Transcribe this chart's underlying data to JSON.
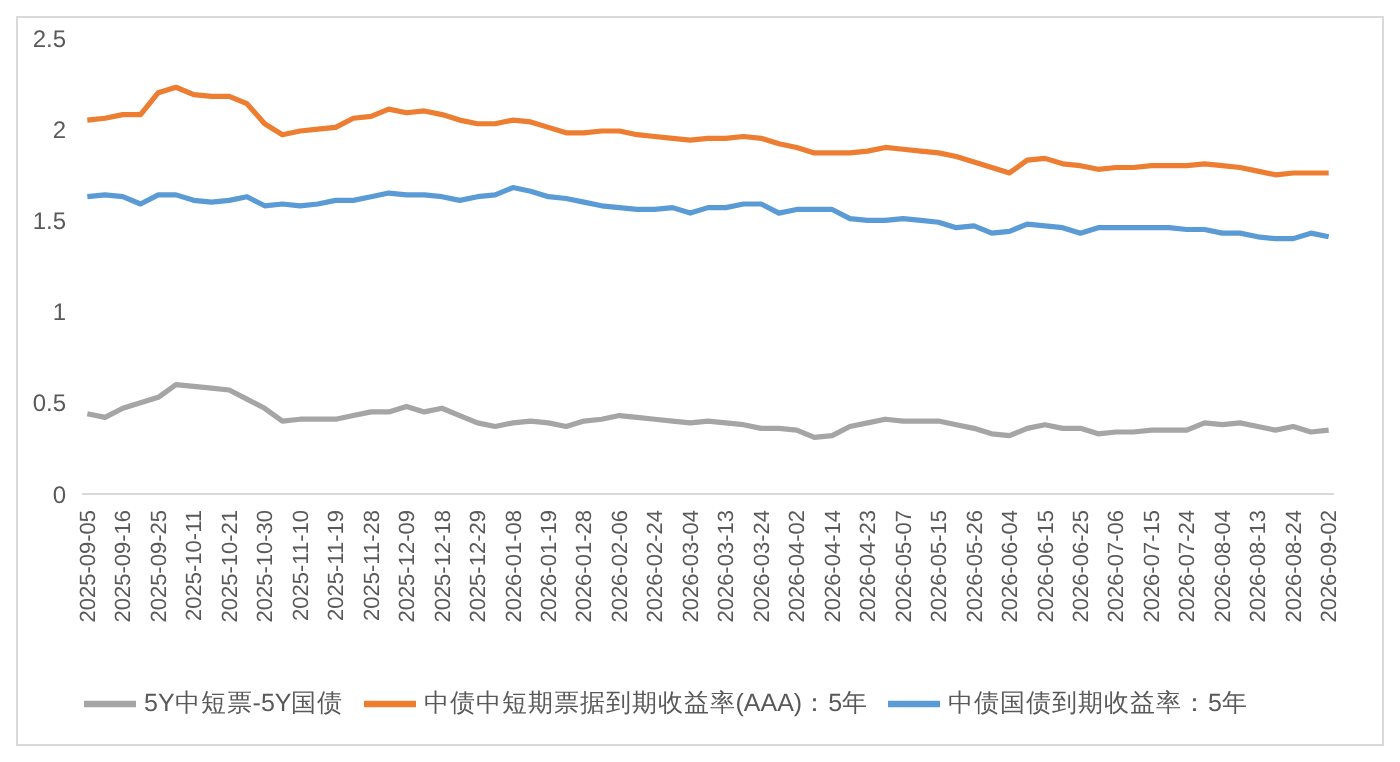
{
  "chart_data": {
    "type": "line",
    "categories": [
      "2025-09-05",
      null,
      "2025-09-16",
      null,
      "2025-09-25",
      null,
      "2025-10-11",
      null,
      "2025-10-21",
      null,
      "2025-10-30",
      null,
      "2025-11-10",
      null,
      "2025-11-19",
      null,
      "2025-11-28",
      null,
      "2025-12-09",
      null,
      "2025-12-18",
      null,
      "2025-12-29",
      null,
      "2026-01-08",
      null,
      "2026-01-19",
      null,
      "2026-01-28",
      null,
      "2026-02-06",
      null,
      "2026-02-24",
      null,
      "2026-03-04",
      null,
      "2026-03-13",
      null,
      "2026-03-24",
      null,
      "2026-04-02",
      null,
      "2026-04-14",
      null,
      "2026-04-23",
      null,
      "2026-05-07",
      null,
      "2026-05-15",
      null,
      "2026-05-26",
      null,
      "2026-06-04",
      null,
      "2026-06-15",
      null,
      "2026-06-25",
      null,
      "2026-07-06",
      null,
      "2026-07-15",
      null,
      "2026-07-24",
      null,
      "2026-08-04",
      null,
      "2026-08-13",
      null,
      "2026-08-24",
      null,
      "2026-09-02"
    ],
    "series": [
      {
        "name": "中债国债到期收益率：5年",
        "color": "#5b9bd5",
        "values": [
          1.63,
          1.64,
          1.63,
          1.59,
          1.64,
          1.64,
          1.61,
          1.6,
          1.61,
          1.63,
          1.58,
          1.59,
          1.58,
          1.59,
          1.61,
          1.61,
          1.63,
          1.65,
          1.64,
          1.64,
          1.63,
          1.61,
          1.63,
          1.64,
          1.68,
          1.66,
          1.63,
          1.62,
          1.6,
          1.58,
          1.57,
          1.56,
          1.56,
          1.57,
          1.54,
          1.57,
          1.57,
          1.59,
          1.59,
          1.54,
          1.56,
          1.56,
          1.56,
          1.51,
          1.5,
          1.5,
          1.51,
          1.5,
          1.49,
          1.46,
          1.47,
          1.43,
          1.44,
          1.48,
          1.47,
          1.46,
          1.43,
          1.46,
          1.46,
          1.46,
          1.46,
          1.46,
          1.45,
          1.45,
          1.43,
          1.43,
          1.41,
          1.4,
          1.4,
          1.43,
          1.41
        ]
      },
      {
        "name": "中债中短期票据到期收益率(AAA)：5年",
        "color": "#ed7d31",
        "values": [
          2.05,
          2.06,
          2.08,
          2.08,
          2.2,
          2.23,
          2.19,
          2.18,
          2.18,
          2.14,
          2.03,
          1.97,
          1.99,
          2.0,
          2.01,
          2.06,
          2.07,
          2.11,
          2.09,
          2.1,
          2.08,
          2.05,
          2.03,
          2.03,
          2.05,
          2.04,
          2.01,
          1.98,
          1.98,
          1.99,
          1.99,
          1.97,
          1.96,
          1.95,
          1.94,
          1.95,
          1.95,
          1.96,
          1.95,
          1.92,
          1.9,
          1.87,
          1.87,
          1.87,
          1.88,
          1.9,
          1.89,
          1.88,
          1.87,
          1.85,
          1.82,
          1.79,
          1.76,
          1.83,
          1.84,
          1.81,
          1.8,
          1.78,
          1.79,
          1.79,
          1.8,
          1.8,
          1.8,
          1.81,
          1.8,
          1.79,
          1.77,
          1.75,
          1.76,
          1.76,
          1.76
        ]
      },
      {
        "name": "5Y中短票-5Y国债",
        "color": "#a5a5a5",
        "values": [
          0.44,
          0.42,
          0.47,
          0.5,
          0.53,
          0.6,
          0.59,
          0.58,
          0.57,
          0.52,
          0.47,
          0.4,
          0.41,
          0.41,
          0.41,
          0.43,
          0.45,
          0.45,
          0.48,
          0.45,
          0.47,
          0.43,
          0.39,
          0.37,
          0.39,
          0.4,
          0.39,
          0.37,
          0.4,
          0.41,
          0.43,
          0.42,
          0.41,
          0.4,
          0.39,
          0.4,
          0.39,
          0.38,
          0.36,
          0.36,
          0.35,
          0.31,
          0.32,
          0.37,
          0.39,
          0.41,
          0.4,
          0.4,
          0.4,
          0.38,
          0.36,
          0.33,
          0.32,
          0.36,
          0.38,
          0.36,
          0.36,
          0.33,
          0.34,
          0.34,
          0.35,
          0.35,
          0.35,
          0.39,
          0.38,
          0.39,
          0.37,
          0.35,
          0.37,
          0.34,
          0.35
        ]
      }
    ],
    "ylim": [
      0,
      2.5
    ],
    "yticks": [
      0,
      0.5,
      1,
      1.5,
      2,
      2.5
    ],
    "grid": false,
    "legend": "bottom",
    "marker": "none",
    "line_style": "solid"
  }
}
